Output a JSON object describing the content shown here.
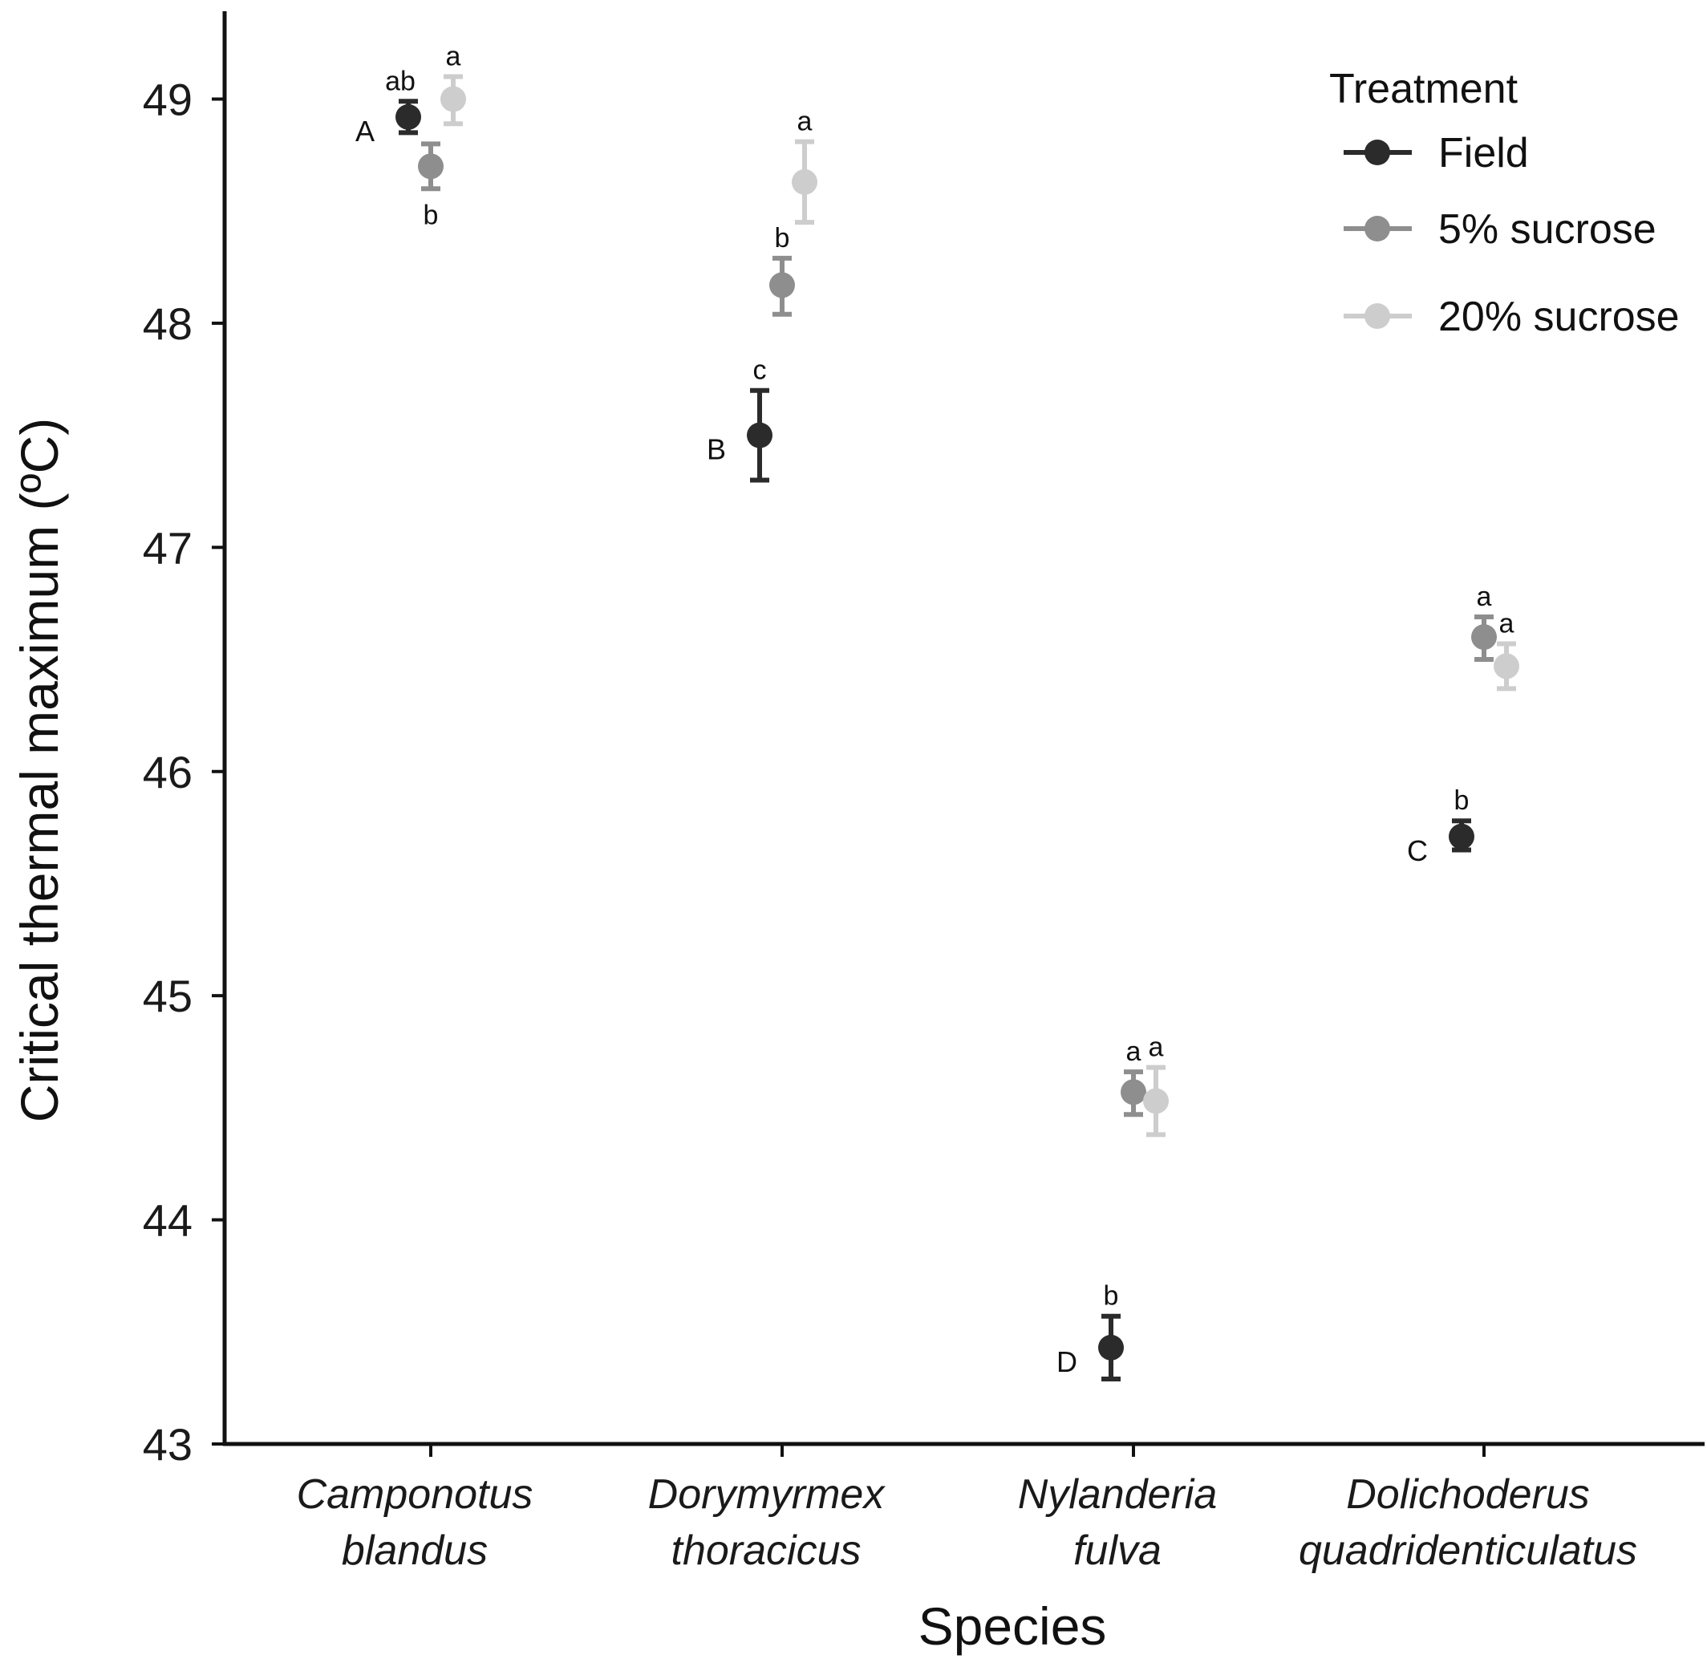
{
  "chart_data": {
    "type": "scatter",
    "title": "",
    "xlabel": "Species",
    "ylabel": "Critical thermal maximum (ºC)",
    "ylim": [
      43,
      49.4
    ],
    "yticks": [
      43,
      44,
      45,
      46,
      47,
      48,
      49
    ],
    "yticklabels": [
      "43",
      "44",
      "45",
      "46",
      "47",
      "48",
      "49"
    ],
    "categories": [
      [
        "Camponotus",
        "blandus"
      ],
      [
        "Dorymyrmex",
        "thoracicus"
      ],
      [
        "Nylanderia",
        "fulva"
      ],
      [
        "Dolichoderus",
        "quadridenticulatus"
      ]
    ],
    "grid": false,
    "legend": {
      "title": "Treatment",
      "placement": "top-right",
      "entries": [
        "Field",
        "5% sucrose",
        "20% sucrose"
      ]
    },
    "series": [
      {
        "name": "Field",
        "color": "#2b2b2b",
        "values": [
          48.92,
          47.5,
          43.43,
          45.71
        ],
        "err_low": [
          48.85,
          47.3,
          43.29,
          45.65
        ],
        "err_high": [
          48.99,
          47.7,
          43.57,
          45.78
        ],
        "letters": [
          "ab",
          "c",
          "b",
          "b"
        ],
        "caps_letters": [
          "A",
          "B",
          "D",
          "C"
        ]
      },
      {
        "name": "5% sucrose",
        "color": "#8e8e8e",
        "values": [
          48.7,
          48.17,
          44.57,
          46.6
        ],
        "err_low": [
          48.6,
          48.04,
          44.47,
          46.5
        ],
        "err_high": [
          48.8,
          48.29,
          44.66,
          46.69
        ],
        "letters": [
          "b",
          "b",
          "a",
          "a"
        ]
      },
      {
        "name": "20% sucrose",
        "color": "#cdcdcd",
        "values": [
          49.0,
          48.63,
          44.53,
          46.47
        ],
        "err_low": [
          48.89,
          48.45,
          44.38,
          46.37
        ],
        "err_high": [
          49.1,
          48.81,
          44.68,
          46.57
        ],
        "letters": [
          "a",
          "a",
          "a",
          "a"
        ]
      }
    ]
  }
}
